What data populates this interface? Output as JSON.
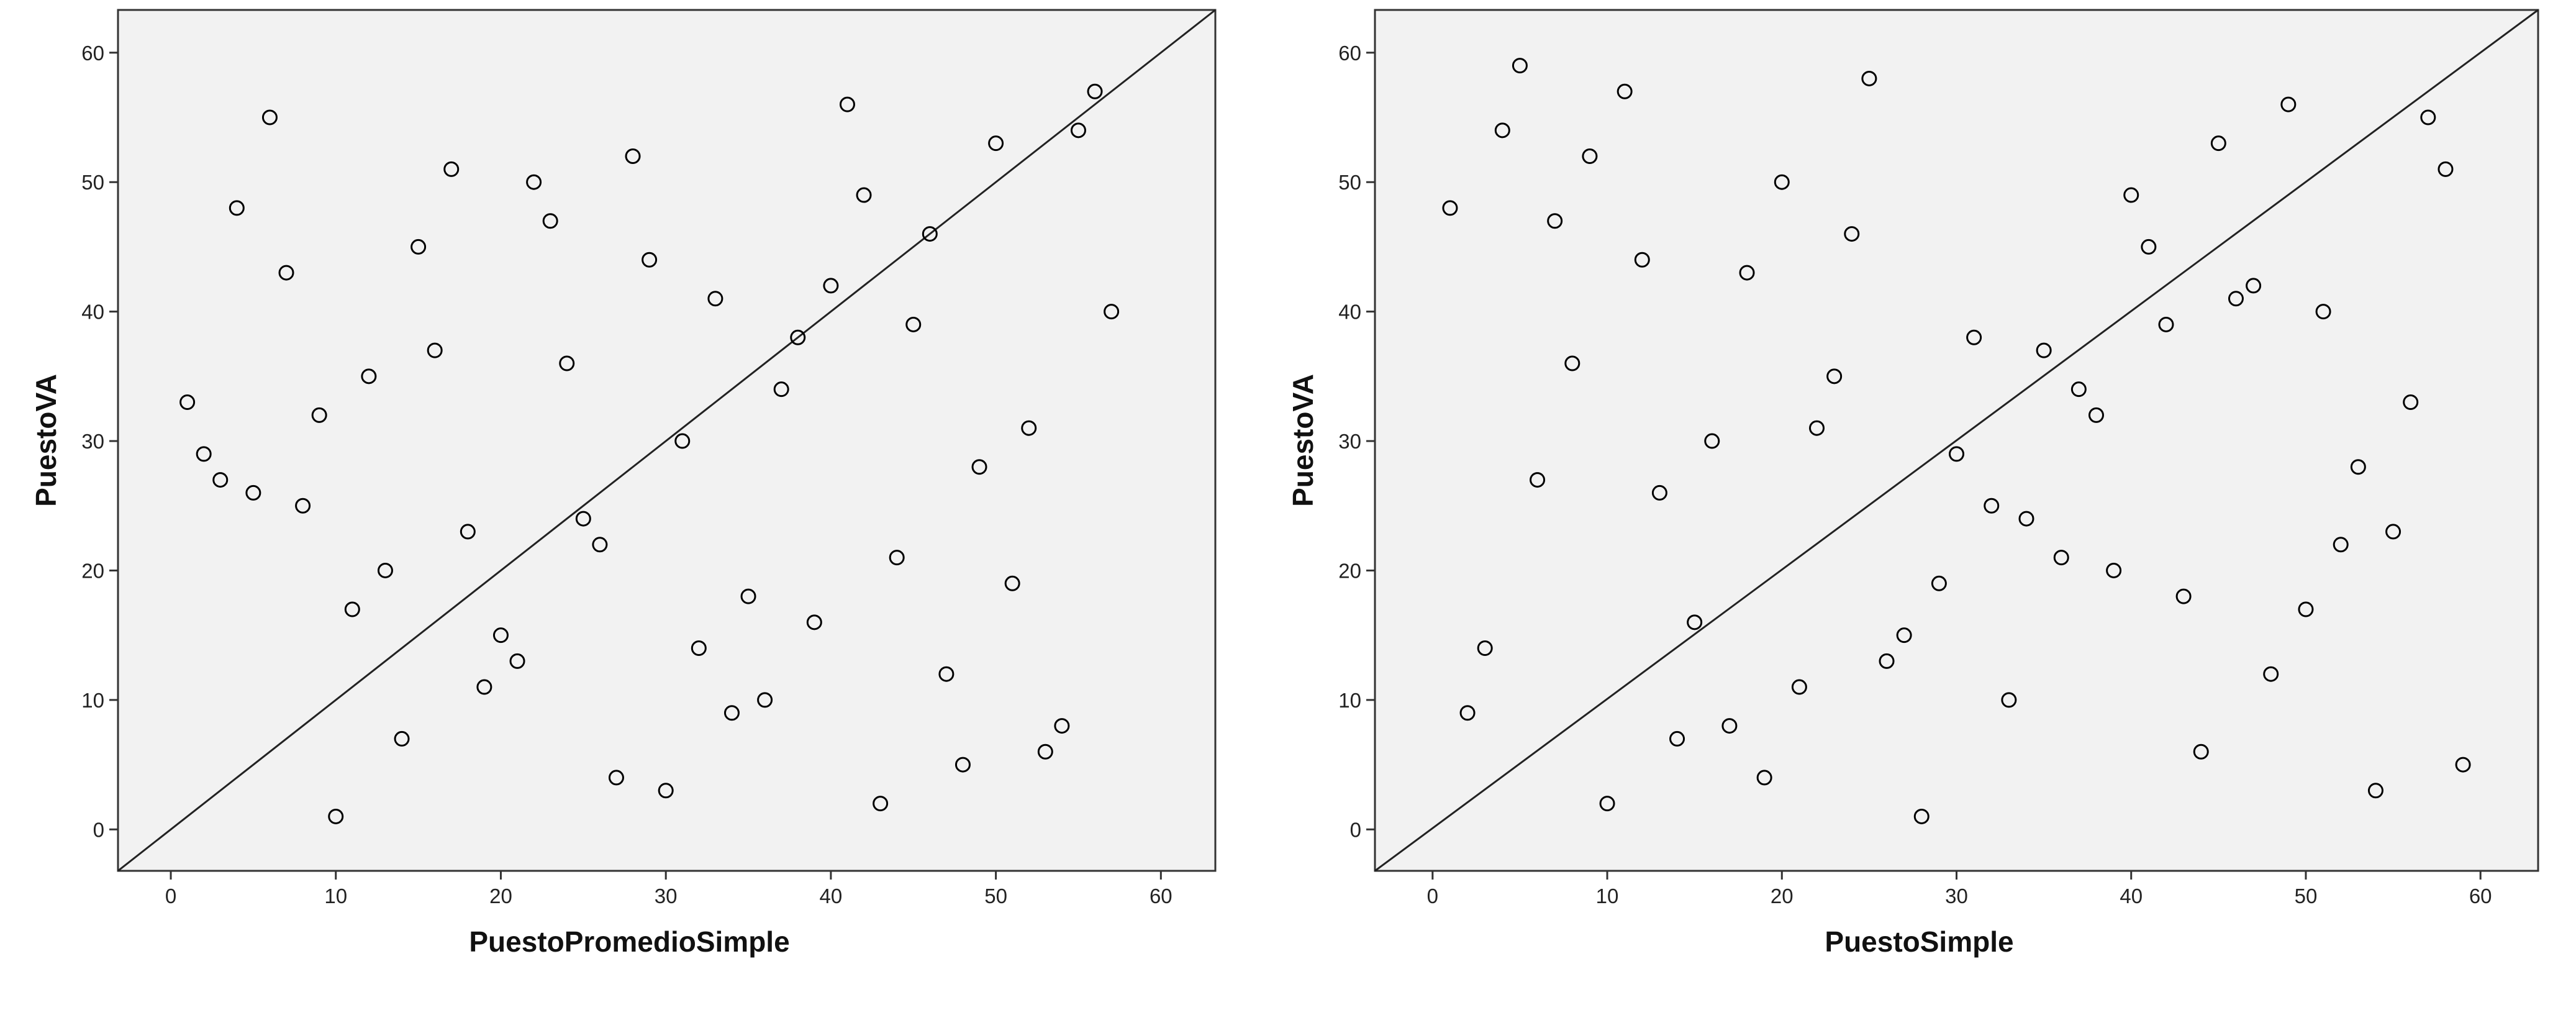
{
  "chart_data": [
    {
      "type": "scatter",
      "xlabel": "PuestoPromedioSimple",
      "ylabel": "PuestoVA",
      "x": [
        1,
        2,
        3,
        4,
        5,
        6,
        7,
        8,
        9,
        10,
        11,
        12,
        13,
        14,
        15,
        16,
        17,
        18,
        19,
        20,
        21,
        22,
        23,
        24,
        25,
        26,
        27,
        28,
        29,
        30,
        31,
        32,
        33,
        34,
        35,
        36,
        37,
        38,
        39,
        40,
        41,
        42,
        43,
        44,
        45,
        46,
        47,
        48,
        49,
        50,
        51,
        52,
        53,
        54,
        55,
        56,
        57
      ],
      "values": [
        33,
        29,
        27,
        48,
        26,
        55,
        43,
        25,
        32,
        1,
        17,
        35,
        20,
        7,
        45,
        37,
        51,
        23,
        11,
        15,
        13,
        50,
        47,
        36,
        24,
        22,
        4,
        52,
        44,
        3,
        30,
        14,
        41,
        9,
        18,
        10,
        34,
        38,
        16,
        42,
        56,
        49,
        2,
        21,
        39,
        46,
        12,
        5,
        28,
        53,
        19,
        31,
        6,
        8,
        54,
        57,
        40
      ],
      "color": "#000000",
      "xlim": [
        -3.2,
        63.3
      ],
      "ylim": [
        -3.2,
        63.3
      ],
      "xticks": [
        0,
        10,
        20,
        30,
        40,
        50,
        60
      ],
      "yticks": [
        0,
        10,
        20,
        30,
        40,
        50,
        60
      ]
    },
    {
      "type": "scatter",
      "xlabel": "PuestoSimple",
      "ylabel": "PuestoVA",
      "x": [
        1,
        2,
        3,
        4,
        5,
        6,
        7,
        8,
        9,
        10,
        11,
        12,
        13,
        14,
        15,
        16,
        17,
        18,
        19,
        20,
        21,
        22,
        23,
        24,
        25,
        26,
        27,
        28,
        29,
        30,
        31,
        32,
        33,
        34,
        35,
        36,
        37,
        38,
        39,
        40,
        41,
        42,
        43,
        44,
        45,
        46,
        47,
        48,
        49,
        50,
        51,
        52,
        53,
        54,
        55,
        56,
        57,
        58,
        59
      ],
      "values": [
        48,
        9,
        14,
        54,
        59,
        27,
        47,
        36,
        52,
        2,
        57,
        44,
        26,
        7,
        16,
        30,
        8,
        43,
        4,
        50,
        11,
        31,
        35,
        46,
        58,
        13,
        15,
        1,
        19,
        29,
        38,
        25,
        10,
        24,
        37,
        21,
        34,
        32,
        20,
        49,
        45,
        39,
        18,
        6,
        53,
        41,
        42,
        12,
        56,
        17,
        40,
        22,
        28,
        3,
        23,
        33,
        55,
        51,
        5
      ],
      "color": "#000000",
      "xlim": [
        -3.3,
        63.3
      ],
      "ylim": [
        -3.2,
        63.3
      ],
      "xticks": [
        0,
        10,
        20,
        30,
        40,
        50,
        60
      ],
      "yticks": [
        0,
        10,
        20,
        30,
        40,
        50,
        60
      ]
    }
  ]
}
